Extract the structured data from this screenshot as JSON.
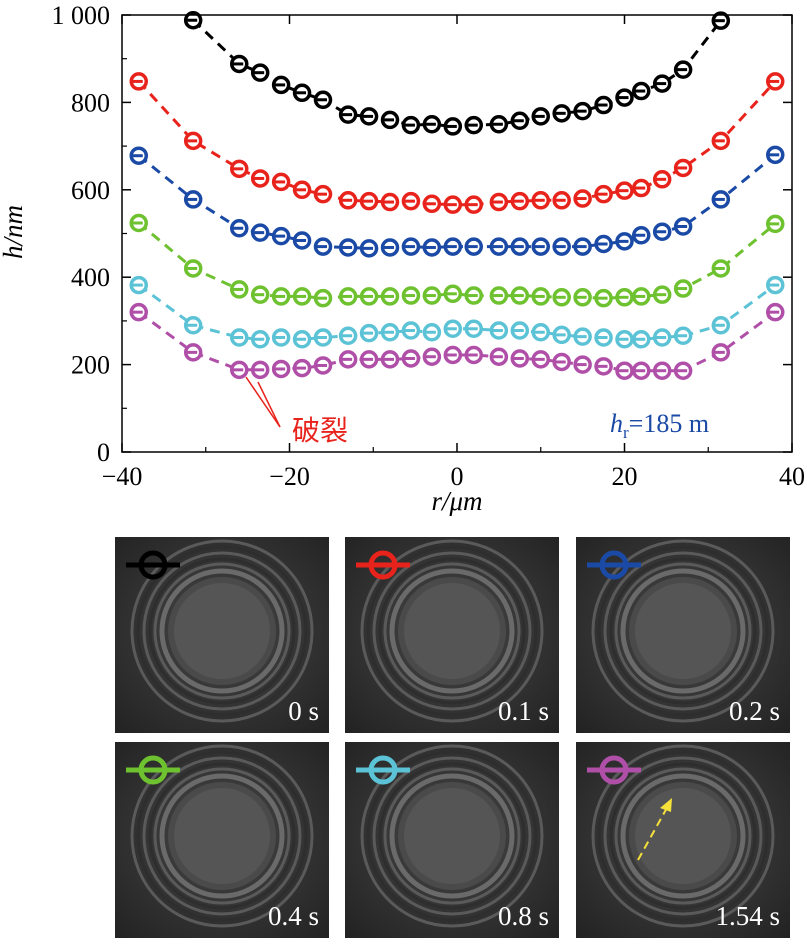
{
  "chart_data": {
    "type": "scatter",
    "xlabel": "r/μm",
    "ylabel": "h/nm",
    "xlim": [
      -40,
      40
    ],
    "ylim": [
      0,
      1000
    ],
    "xticks": [
      "−40",
      "−20",
      "0",
      "20",
      "40"
    ],
    "yticks": [
      "0",
      "200",
      "400",
      "600",
      "800",
      "1 000"
    ],
    "annotation_rupture": "破裂",
    "annotation_hr": "h",
    "annotation_hr_sub": "r",
    "annotation_hr_value": "=185 m",
    "series": [
      {
        "color": "#000000",
        "x": [
          -31.5,
          -26,
          -23.5,
          -21,
          -18.5,
          -16,
          -13,
          -10.5,
          -8,
          -5.5,
          -3,
          -0.5,
          2,
          5,
          7.5,
          10,
          12.5,
          15,
          17.5,
          20,
          22,
          24.5,
          27,
          31.5
        ],
        "y": [
          988,
          888,
          868,
          840,
          822,
          806,
          772,
          768,
          760,
          748,
          750,
          745,
          748,
          750,
          758,
          768,
          775,
          780,
          794,
          811,
          826,
          843,
          875,
          987
        ]
      },
      {
        "color": "#e8231c",
        "x": [
          -38,
          -31.5,
          -26,
          -23.5,
          -21,
          -18.5,
          -16,
          -13,
          -10.5,
          -8,
          -5.5,
          -3,
          -0.5,
          2,
          5,
          7.5,
          10,
          12.5,
          15,
          17.5,
          20,
          22,
          24.5,
          27,
          31.5,
          38
        ],
        "y": [
          848,
          712,
          648,
          626,
          618,
          600,
          590,
          576,
          574,
          572,
          574,
          568,
          566,
          566,
          572,
          574,
          576,
          576,
          580,
          590,
          598,
          604,
          624,
          650,
          712,
          848
        ]
      },
      {
        "color": "#1a4aa5",
        "x": [
          -38,
          -31.5,
          -26,
          -23.5,
          -21,
          -18.5,
          -16,
          -13,
          -10.5,
          -8,
          -5.5,
          -3,
          -0.5,
          2,
          5,
          7.5,
          10,
          12.5,
          15,
          17.5,
          20,
          22,
          24.5,
          27,
          31.5,
          38
        ],
        "y": [
          678,
          578,
          512,
          502,
          494,
          484,
          470,
          468,
          466,
          468,
          470,
          468,
          470,
          470,
          470,
          470,
          470,
          470,
          470,
          476,
          482,
          496,
          504,
          516,
          578,
          680
        ]
      },
      {
        "color": "#6ec12f",
        "x": [
          -38,
          -31.5,
          -26,
          -23.5,
          -21,
          -18.5,
          -16,
          -13,
          -10.5,
          -8,
          -5.5,
          -3,
          -0.5,
          2,
          5,
          7.5,
          10,
          12.5,
          15,
          17.5,
          20,
          22,
          24.5,
          27,
          31.5,
          38
        ],
        "y": [
          524,
          420,
          372,
          360,
          356,
          356,
          352,
          356,
          356,
          356,
          358,
          358,
          362,
          358,
          358,
          358,
          356,
          354,
          354,
          352,
          354,
          356,
          360,
          374,
          420,
          522
        ]
      },
      {
        "color": "#5cc3d6",
        "x": [
          -38,
          -31.5,
          -26,
          -23.5,
          -21,
          -18.5,
          -16,
          -13,
          -10.5,
          -8,
          -5.5,
          -3,
          -0.5,
          2,
          5,
          7.5,
          10,
          12.5,
          15,
          17.5,
          20,
          22,
          24.5,
          27,
          31.5,
          38
        ],
        "y": [
          382,
          290,
          262,
          258,
          262,
          258,
          262,
          266,
          272,
          274,
          278,
          274,
          282,
          282,
          278,
          278,
          274,
          268,
          264,
          262,
          258,
          258,
          262,
          266,
          290,
          382
        ]
      },
      {
        "color": "#b04fa8",
        "x": [
          -38,
          -31.5,
          -26,
          -23.5,
          -21,
          -18.5,
          -16,
          -13,
          -10.5,
          -8,
          -5.5,
          -3,
          -0.5,
          2,
          5,
          7.5,
          10,
          12.5,
          15,
          17.5,
          20,
          22,
          24.5,
          27,
          31.5,
          38
        ],
        "y": [
          320,
          228,
          188,
          188,
          190,
          192,
          198,
          212,
          212,
          212,
          214,
          218,
          222,
          222,
          218,
          214,
          212,
          206,
          200,
          196,
          186,
          186,
          186,
          186,
          228,
          320
        ]
      }
    ]
  },
  "panels": [
    {
      "time": "0 s",
      "color": "#000000"
    },
    {
      "time": "0.1 s",
      "color": "#e8231c"
    },
    {
      "time": "0.2 s",
      "color": "#1a4aa5"
    },
    {
      "time": "0.4 s",
      "color": "#6ec12f"
    },
    {
      "time": "0.8 s",
      "color": "#5cc3d6"
    },
    {
      "time": "1.54 s",
      "color": "#b04fa8"
    }
  ],
  "colors": {
    "annotation_red": "#e8231c",
    "annotation_blue": "#1a4aa5",
    "arrow_yellow": "#f5e13a"
  }
}
